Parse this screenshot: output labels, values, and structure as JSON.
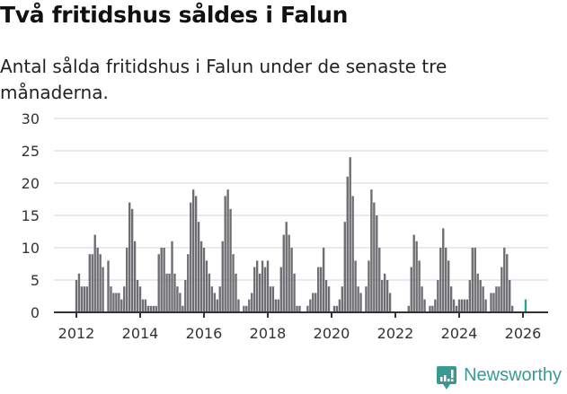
{
  "header": {
    "title": "Två fritidshus såldes i Falun",
    "subtitle": "Antal sålda fritidshus i Falun under de senaste tre månaderna."
  },
  "footer": {
    "brand": "Newsworthy",
    "brand_color": "#3a9a93"
  },
  "colors": {
    "bar": "#6e6d72",
    "highlight": "#27a39b",
    "grid": "#e3e3e3",
    "axis": "#333333"
  },
  "chart_data": {
    "type": "bar",
    "title": "Två fritidshus såldes i Falun",
    "subtitle": "Antal sålda fritidshus i Falun under de senaste tre månaderna.",
    "xlabel": "",
    "ylabel": "",
    "ylim": [
      0,
      30
    ],
    "yticks": [
      0,
      5,
      10,
      15,
      20,
      25,
      30
    ],
    "xticks": [
      "2012",
      "2014",
      "2016",
      "2018",
      "2020",
      "2022",
      "2024",
      "2026"
    ],
    "grid": true,
    "start": "2012-01",
    "frequency": "monthly",
    "annotation": {
      "label": "2",
      "index": 170
    },
    "values": [
      5,
      6,
      4,
      4,
      4,
      9,
      9,
      12,
      10,
      9,
      7,
      0,
      8,
      4,
      3,
      3,
      3,
      2,
      4,
      10,
      17,
      16,
      11,
      5,
      4,
      2,
      2,
      1,
      1,
      1,
      1,
      9,
      10,
      10,
      6,
      6,
      11,
      6,
      4,
      3,
      1,
      5,
      9,
      17,
      19,
      18,
      14,
      11,
      10,
      8,
      6,
      4,
      3,
      2,
      4,
      11,
      18,
      19,
      16,
      9,
      6,
      2,
      0,
      1,
      1,
      2,
      3,
      7,
      8,
      6,
      8,
      7,
      8,
      4,
      4,
      2,
      2,
      7,
      12,
      14,
      12,
      10,
      6,
      1,
      1,
      0,
      0,
      1,
      2,
      3,
      3,
      7,
      7,
      10,
      5,
      4,
      0,
      1,
      1,
      2,
      4,
      14,
      21,
      24,
      18,
      8,
      4,
      3,
      0,
      4,
      8,
      19,
      17,
      15,
      10,
      5,
      6,
      5,
      3,
      0,
      0,
      0,
      0,
      0,
      0,
      1,
      7,
      12,
      11,
      8,
      4,
      2,
      0,
      1,
      1,
      2,
      5,
      10,
      13,
      10,
      8,
      4,
      2,
      1,
      2,
      2,
      2,
      2,
      5,
      10,
      10,
      6,
      5,
      4,
      2,
      0,
      3,
      3,
      4,
      4,
      7,
      10,
      9,
      5,
      1,
      0,
      0,
      0,
      0,
      2
    ]
  }
}
